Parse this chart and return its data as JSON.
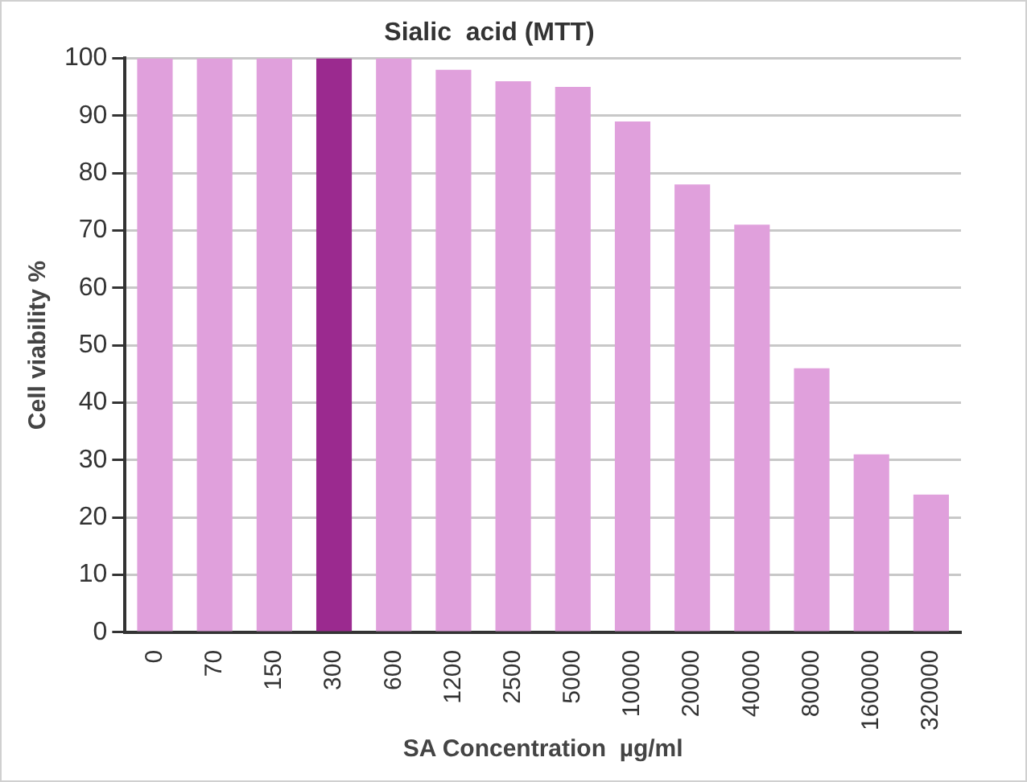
{
  "chart_data": {
    "type": "bar",
    "title": "Sialic  acid (MTT)",
    "xlabel": "SA Concentration  µg/ml",
    "ylabel": "Cell viability %",
    "categories": [
      "0",
      "70",
      "150",
      "300",
      "600",
      "1200",
      "2500",
      "5000",
      "10000",
      "20000",
      "40000",
      "80000",
      "160000",
      "320000"
    ],
    "values": [
      100,
      100,
      100,
      100,
      100,
      98,
      96,
      95,
      89,
      78,
      71,
      46,
      31,
      24
    ],
    "colors": [
      "#e0a0dc",
      "#e0a0dc",
      "#e0a0dc",
      "#9b2a8f",
      "#e0a0dc",
      "#e0a0dc",
      "#e0a0dc",
      "#e0a0dc",
      "#e0a0dc",
      "#e0a0dc",
      "#e0a0dc",
      "#e0a0dc",
      "#e0a0dc",
      "#e0a0dc"
    ],
    "ylim": [
      0,
      100
    ],
    "yticks": [
      0,
      10,
      20,
      30,
      40,
      50,
      60,
      70,
      80,
      90,
      100
    ],
    "grid": "y",
    "legend": false
  }
}
